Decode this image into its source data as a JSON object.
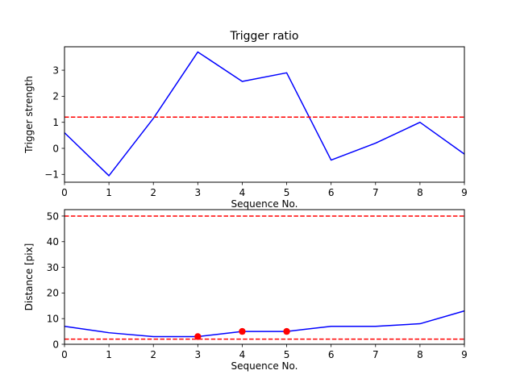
{
  "chart_data": [
    {
      "type": "line",
      "title": "Trigger ratio",
      "xlabel": "Sequence No.",
      "ylabel": "Trigger strength",
      "xlim": [
        0,
        9
      ],
      "ylim": [
        -1.3,
        3.9
      ],
      "xticks": [
        0,
        1,
        2,
        3,
        4,
        5,
        6,
        7,
        8,
        9
      ],
      "yticks": [
        -1,
        0,
        1,
        2,
        3
      ],
      "grid": false,
      "x": [
        0,
        1,
        2,
        3,
        4,
        5,
        6,
        7,
        8,
        9
      ],
      "series": [
        {
          "values": [
            0.6,
            -1.05,
            1.15,
            3.7,
            2.57,
            2.9,
            -0.45,
            0.2,
            1.0,
            -0.22
          ],
          "color": "#0000ff"
        }
      ],
      "hlines": [
        {
          "y": 1.2,
          "color": "#ff0000",
          "style": "dashed"
        }
      ],
      "markers": []
    },
    {
      "type": "line",
      "title": "",
      "xlabel": "Sequence No.",
      "ylabel": "Distance [pix]",
      "xlim": [
        0,
        9
      ],
      "ylim": [
        0,
        52.5
      ],
      "xticks": [
        0,
        1,
        2,
        3,
        4,
        5,
        6,
        7,
        8,
        9
      ],
      "yticks": [
        0,
        10,
        20,
        30,
        40,
        50
      ],
      "grid": false,
      "x": [
        0,
        1,
        2,
        3,
        4,
        5,
        6,
        7,
        8,
        9
      ],
      "series": [
        {
          "values": [
            7,
            4.5,
            3,
            3,
            5,
            5,
            7,
            7,
            8,
            13
          ],
          "color": "#0000ff"
        }
      ],
      "hlines": [
        {
          "y": 50,
          "color": "#ff0000",
          "style": "dashed"
        },
        {
          "y": 2,
          "color": "#ff0000",
          "style": "dashed"
        }
      ],
      "markers": [
        {
          "x": 3,
          "y": 3,
          "color": "#ff0000"
        },
        {
          "x": 4,
          "y": 5,
          "color": "#ff0000"
        },
        {
          "x": 5,
          "y": 5,
          "color": "#ff0000"
        }
      ]
    }
  ]
}
